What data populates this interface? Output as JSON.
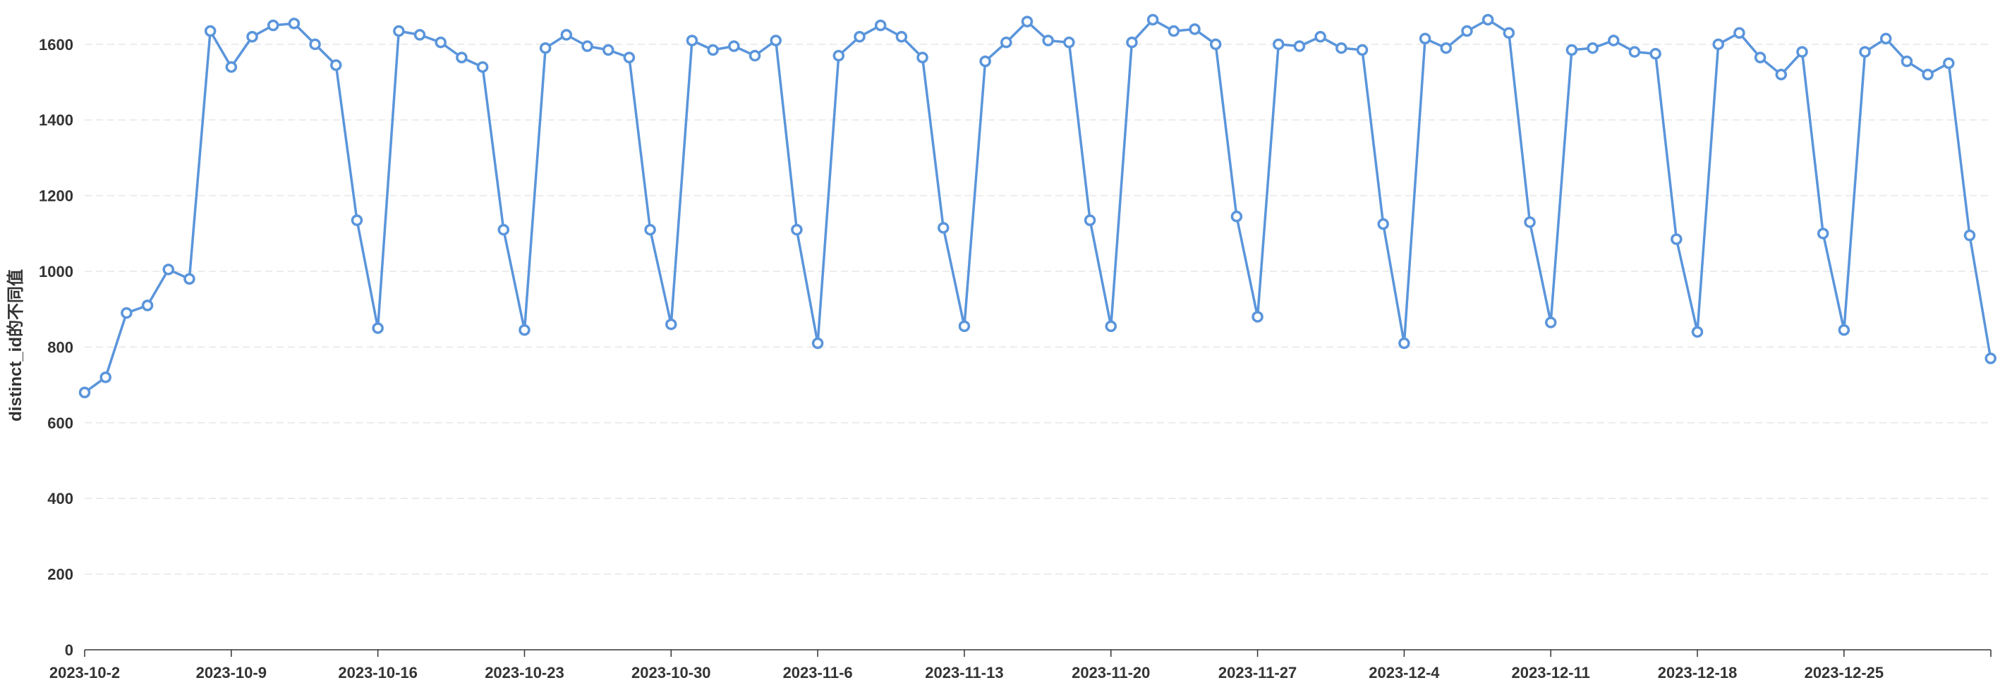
{
  "chart_data": {
    "type": "line",
    "xlabel": "",
    "ylabel": "distinct_id的不同值",
    "ylim": [
      0,
      1650
    ],
    "yticks": [
      0,
      200,
      400,
      600,
      800,
      1000,
      1200,
      1400,
      1600
    ],
    "grid": true,
    "legend": "none",
    "x_start": "2023-10-2",
    "x_end": "2023-12-31",
    "xticks": [
      "2023-10-2",
      "2023-10-9",
      "2023-10-16",
      "2023-10-23",
      "2023-10-30",
      "2023-11-6",
      "2023-11-13",
      "2023-11-20",
      "2023-11-27",
      "2023-12-4",
      "2023-12-11",
      "2023-12-18",
      "2023-12-25"
    ],
    "series": [
      {
        "color": "#5a95db",
        "values": [
          680,
          720,
          890,
          910,
          1005,
          980,
          1635,
          1540,
          1620,
          1650,
          1655,
          1600,
          1545,
          1135,
          850,
          1635,
          1625,
          1605,
          1565,
          1540,
          1110,
          845,
          1590,
          1625,
          1595,
          1585,
          1565,
          1110,
          860,
          1610,
          1585,
          1595,
          1570,
          1610,
          1110,
          810,
          1570,
          1620,
          1650,
          1620,
          1565,
          1115,
          855,
          1555,
          1605,
          1660,
          1610,
          1605,
          1135,
          855,
          1605,
          1665,
          1635,
          1640,
          1600,
          1145,
          880,
          1600,
          1595,
          1620,
          1590,
          1585,
          1125,
          810,
          1615,
          1590,
          1635,
          1665,
          1630,
          1130,
          865,
          1585,
          1590,
          1610,
          1580,
          1575,
          1085,
          840,
          1600,
          1630,
          1565,
          1520,
          1580,
          1100,
          845,
          1580,
          1615,
          1555,
          1520,
          1550,
          1095,
          770
        ]
      }
    ]
  }
}
